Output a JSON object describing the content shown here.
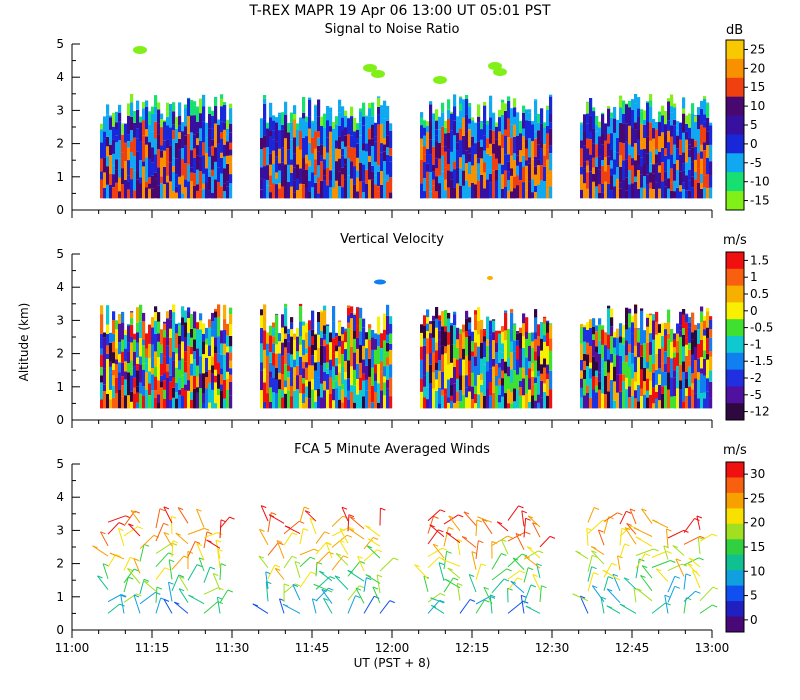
{
  "header": {
    "title": "T-REX  MAPR 19 Apr 06  13:00 UT  05:01  PST"
  },
  "chart_data": [
    {
      "type": "heatmap",
      "title": "Signal to Noise Ratio",
      "ylabel": "",
      "ylim": [
        0,
        5
      ],
      "yticks": [
        "0",
        "1",
        "2",
        "3",
        "4",
        "5"
      ],
      "colorbar_unit": "dB",
      "colorbar_labels": [
        "25",
        "20",
        "15",
        "10",
        "5",
        "0",
        "-5",
        "-10",
        "-15"
      ],
      "colors": [
        "#f8c800",
        "#f89000",
        "#f04010",
        "#480870",
        "#3810a0",
        "#1828d8",
        "#10a8f0",
        "#18e070",
        "#80f018"
      ]
    },
    {
      "type": "heatmap",
      "title": "Vertical Velocity",
      "ylabel": "Altitude (km)",
      "ylim": [
        0,
        5
      ],
      "yticks": [
        "0",
        "1",
        "2",
        "3",
        "4",
        "5"
      ],
      "colorbar_unit": "m/s",
      "colorbar_labels": [
        "1.5",
        "1",
        "0.5",
        "0",
        "-0.5",
        "-1",
        "-1.5",
        "-2",
        "-5",
        "-12"
      ],
      "colors": [
        "#f01010",
        "#f86010",
        "#f8b000",
        "#f8f000",
        "#40e030",
        "#10c8d0",
        "#1080f0",
        "#2030e0",
        "#5010a0",
        "#300840"
      ]
    },
    {
      "type": "scatter",
      "title": "FCA 5 Minute Averaged Winds",
      "ylim": [
        0,
        5
      ],
      "yticks": [
        "0",
        "1",
        "2",
        "3",
        "4",
        "5"
      ],
      "colorbar_unit": "m/s",
      "colorbar_labels": [
        "30",
        "25",
        "20",
        "15",
        "10",
        "5",
        "0"
      ],
      "colors": [
        "#f01010",
        "#f86010",
        "#f8a000",
        "#f8e000",
        "#a0e020",
        "#30d040",
        "#10c090",
        "#10a0e0",
        "#1050f0",
        "#2020c0",
        "#480878"
      ]
    }
  ],
  "x_axis": {
    "label": "UT  (PST + 8)",
    "ticks": [
      "11:00",
      "11:15",
      "11:30",
      "11:45",
      "12:00",
      "12:15",
      "12:30",
      "12:45",
      "13:00"
    ]
  }
}
